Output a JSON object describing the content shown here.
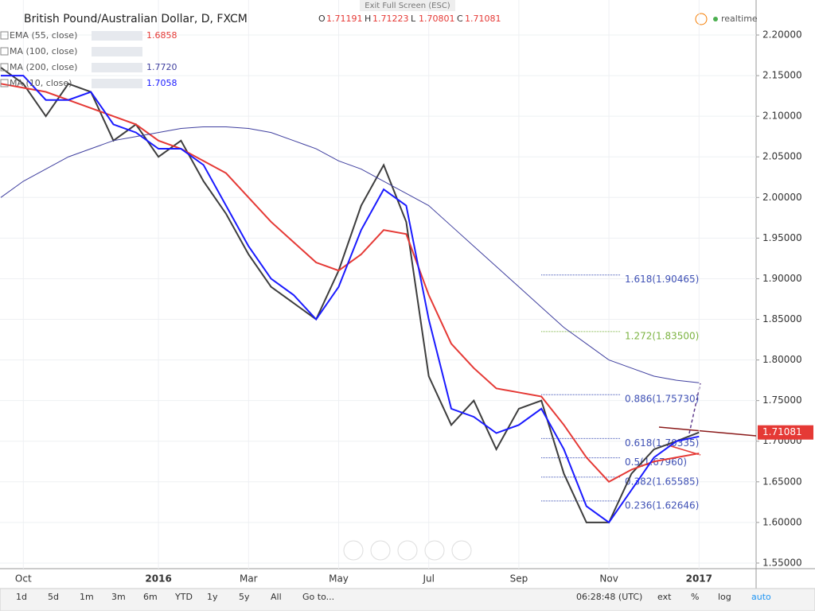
{
  "header": {
    "symbol": "British Pound/Australian Dollar, D, FXCM",
    "ohlc": [
      {
        "label": "O",
        "value": "1.71191"
      },
      {
        "label": "H",
        "value": "1.71223"
      },
      {
        "label": "L",
        "value": "1.70801"
      },
      {
        "label": "C",
        "value": "1.71081"
      }
    ],
    "exit": "Exit Full Screen (ESC)",
    "status": "realtime"
  },
  "indicators": [
    {
      "name": "EMA (55, close)",
      "value": "1.6858",
      "color": "#e53935"
    },
    {
      "name": "MA (100, close)"
    },
    {
      "name": "MA (200, close)",
      "value": "1.7720",
      "color": "#3f3f9f"
    },
    {
      "name": "MA (10, close)",
      "value": "1.7058",
      "color": "#1a1aff"
    }
  ],
  "chart_data": {
    "type": "line",
    "categories": [
      null,
      "Oct",
      null,
      null,
      null,
      null,
      null,
      "2016",
      null,
      null,
      null,
      "Mar",
      null,
      null,
      null,
      "May",
      null,
      null,
      null,
      "Jul",
      null,
      null,
      null,
      "Sep",
      null,
      null,
      null,
      "Nov",
      null,
      null,
      null,
      "2017"
    ],
    "series": [
      {
        "name": "Close",
        "color": "#3d3d3d",
        "values": [
          2.16,
          2.14,
          2.1,
          2.14,
          2.13,
          2.07,
          2.09,
          2.05,
          2.07,
          2.02,
          1.98,
          1.93,
          1.89,
          1.87,
          1.85,
          1.91,
          1.99,
          2.04,
          1.97,
          1.78,
          1.72,
          1.75,
          1.69,
          1.74,
          1.75,
          1.66,
          1.6,
          1.6,
          1.66,
          1.69,
          1.7,
          1.71081
        ]
      },
      {
        "name": "EMA (55, close)",
        "color": "#e53935",
        "values": [
          2.14,
          2.135,
          2.13,
          2.12,
          2.11,
          2.1,
          2.09,
          2.07,
          2.06,
          2.045,
          2.03,
          2.0,
          1.97,
          1.945,
          1.92,
          1.91,
          1.93,
          1.96,
          1.955,
          1.88,
          1.82,
          1.79,
          1.765,
          1.76,
          1.755,
          1.72,
          1.68,
          1.65,
          1.665,
          1.675,
          1.68,
          1.685
        ]
      },
      {
        "name": "MA (200, close)",
        "color": "#3f3f9f",
        "values": [
          2.0,
          2.02,
          2.035,
          2.05,
          2.06,
          2.07,
          2.075,
          2.08,
          2.085,
          2.087,
          2.087,
          2.085,
          2.08,
          2.07,
          2.06,
          2.045,
          2.035,
          2.02,
          2.005,
          1.99,
          1.965,
          1.94,
          1.915,
          1.89,
          1.865,
          1.84,
          1.82,
          1.8,
          1.79,
          1.78,
          1.775,
          1.772
        ]
      },
      {
        "name": "MA (10, close)",
        "color": "#1a1aff",
        "values": [
          2.15,
          2.15,
          2.12,
          2.12,
          2.13,
          2.09,
          2.08,
          2.06,
          2.06,
          2.04,
          1.99,
          1.94,
          1.9,
          1.88,
          1.85,
          1.89,
          1.96,
          2.01,
          1.99,
          1.85,
          1.74,
          1.73,
          1.71,
          1.72,
          1.74,
          1.69,
          1.62,
          1.6,
          1.64,
          1.68,
          1.7,
          1.7058
        ]
      }
    ],
    "ylim": [
      1.5431,
      2.2431
    ],
    "yticks": [
      {
        "value": 2.2,
        "label": "2.20000"
      },
      {
        "value": 2.15,
        "label": "2.15000"
      },
      {
        "value": 2.1,
        "label": "2.10000"
      },
      {
        "value": 2.05,
        "label": "2.05000"
      },
      {
        "value": 2.0,
        "label": "2.00000"
      },
      {
        "value": 1.95,
        "label": "1.95000"
      },
      {
        "value": 1.9,
        "label": "1.90000"
      },
      {
        "value": 1.85,
        "label": "1.85000"
      },
      {
        "value": 1.8,
        "label": "1.80000"
      },
      {
        "value": 1.75,
        "label": "1.75000"
      },
      {
        "value": 1.7,
        "label": "1.70000"
      },
      {
        "value": 1.65,
        "label": "1.65000"
      },
      {
        "value": 1.6,
        "label": "1.60000"
      },
      {
        "value": 1.55,
        "label": "1.55000"
      }
    ],
    "grid": true,
    "last_price": 1.71081,
    "fib_levels": [
      {
        "value": 1.90465,
        "label": "1.618(1.90465)",
        "color": "#3f51b5"
      },
      {
        "value": 1.835,
        "label": "1.272(1.83500)",
        "color": "#7cb342"
      },
      {
        "value": 1.7573,
        "label": "0.886(1.75730)",
        "color": "#3f51b5"
      },
      {
        "value": 1.70335,
        "label": "0.618(1.70335)",
        "color": "#3f51b5"
      },
      {
        "value": 1.6796,
        "label": "0.5(1.67960)",
        "color": "#3f51b5"
      },
      {
        "value": 1.65585,
        "label": "0.382(1.65585)",
        "color": "#3f51b5"
      },
      {
        "value": 1.62646,
        "label": "0.236(1.62646)",
        "color": "#3f51b5"
      }
    ]
  },
  "toolbar": {
    "ranges": [
      "1d",
      "5d",
      "1m",
      "3m",
      "6m",
      "YTD",
      "1y",
      "5y",
      "All"
    ],
    "goto": "Go to...",
    "clock": "06:28:48 (UTC)",
    "options": [
      "ext",
      "%",
      "log",
      "auto"
    ]
  }
}
